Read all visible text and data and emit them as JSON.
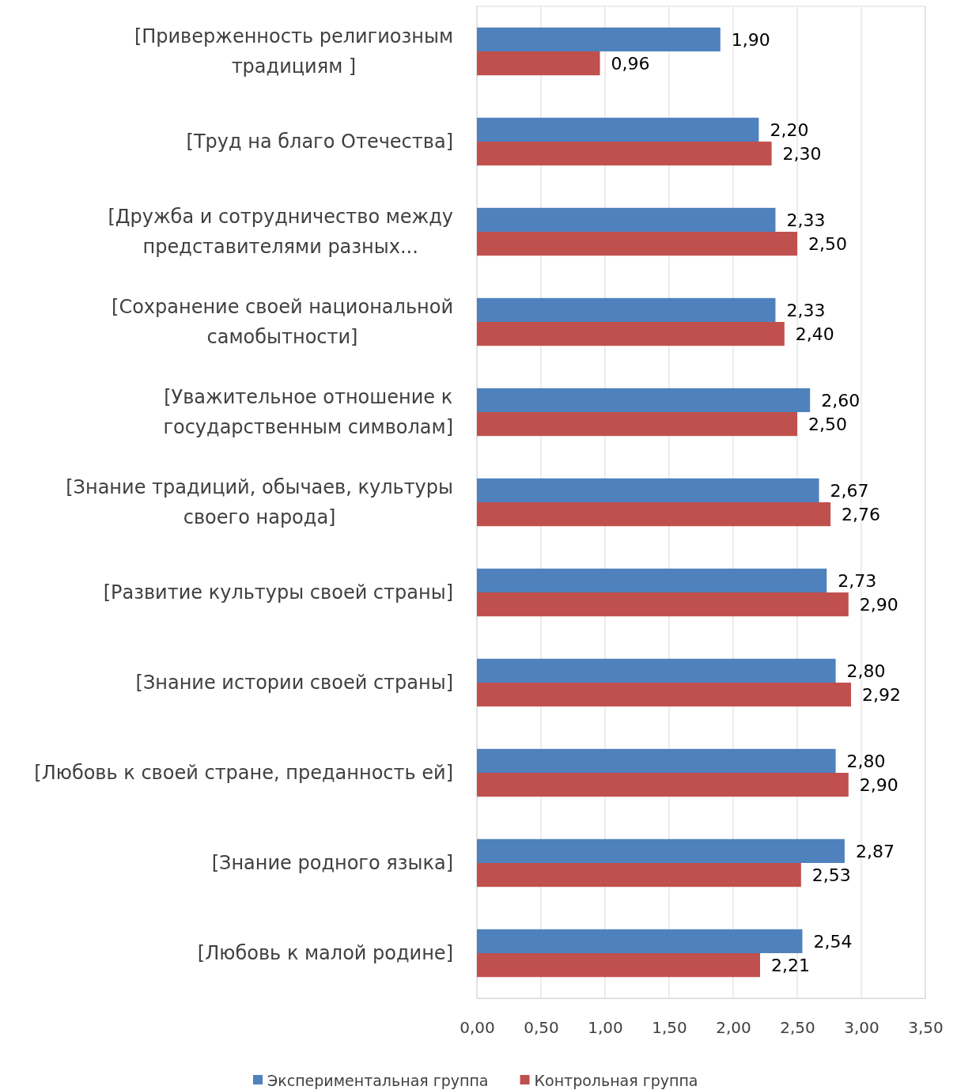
{
  "chart_data": {
    "type": "bar",
    "orientation": "horizontal",
    "categories": [
      "[Приверженность религиозным традициям ]",
      "[Труд на благо Отечества]",
      "[Дружба и сотрудничество между представителями разных...",
      "[Сохранение своей национальной самобытности]",
      "[Уважительное отношение к государственным символам]",
      "[Знание традиций, обычаев, культуры своего народа]",
      "[Развитие культуры своей страны]",
      "[Знание истории своей страны]",
      "[Любовь к своей стране, преданность ей]",
      "[Знание родного языка]",
      "[Любовь к малой родине]"
    ],
    "series": [
      {
        "name": "Экспериментальная группа",
        "color": "#4f81bd",
        "values": [
          1.9,
          2.2,
          2.33,
          2.33,
          2.6,
          2.67,
          2.73,
          2.8,
          2.8,
          2.87,
          2.54
        ],
        "value_labels": [
          "1,90",
          "2,20",
          "2,33",
          "2,33",
          "2,60",
          "2,67",
          "2,73",
          "2,80",
          "2,80",
          "2,87",
          "2,54"
        ]
      },
      {
        "name": "Контрольная группа",
        "color": "#c0504d",
        "values": [
          0.96,
          2.3,
          2.5,
          2.4,
          2.5,
          2.76,
          2.9,
          2.92,
          2.9,
          2.53,
          2.21
        ],
        "value_labels": [
          "0,96",
          "2,30",
          "2,50",
          "2,40",
          "2,50",
          "2,76",
          "2,90",
          "2,92",
          "2,90",
          "2,53",
          "2,21"
        ]
      }
    ],
    "xlim": [
      0,
      3.5
    ],
    "xticks": [
      {
        "value": 0,
        "label": "0,00"
      },
      {
        "value": 0.5,
        "label": "0,50"
      },
      {
        "value": 1,
        "label": "1,00"
      },
      {
        "value": 1.5,
        "label": "1,50"
      },
      {
        "value": 2,
        "label": "2,00"
      },
      {
        "value": 2.5,
        "label": "2,50"
      },
      {
        "value": 3,
        "label": "3,00"
      },
      {
        "value": 3.5,
        "label": "3,50"
      }
    ],
    "grid": "x",
    "legend": "bottom"
  }
}
